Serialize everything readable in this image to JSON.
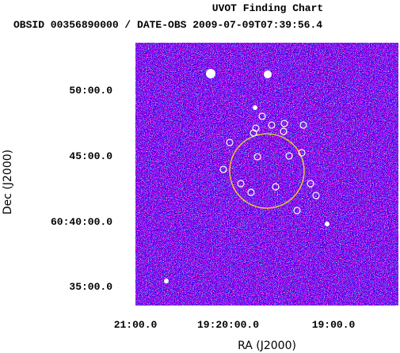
{
  "title": "UVOT Finding Chart",
  "subtitle": "OBSID 00356890000 / DATE-OBS 2009-07-09T07:39:56.4",
  "axes": {
    "x_label": "RA (J2000)",
    "y_label": "Dec (J2000)",
    "x_ticks": [
      "21:00.0",
      "19:20:00.0",
      "19:00.0"
    ],
    "y_ticks": [
      "50:00.0",
      "45:00.0",
      "60:40:00.0",
      "35:00.0"
    ]
  }
}
